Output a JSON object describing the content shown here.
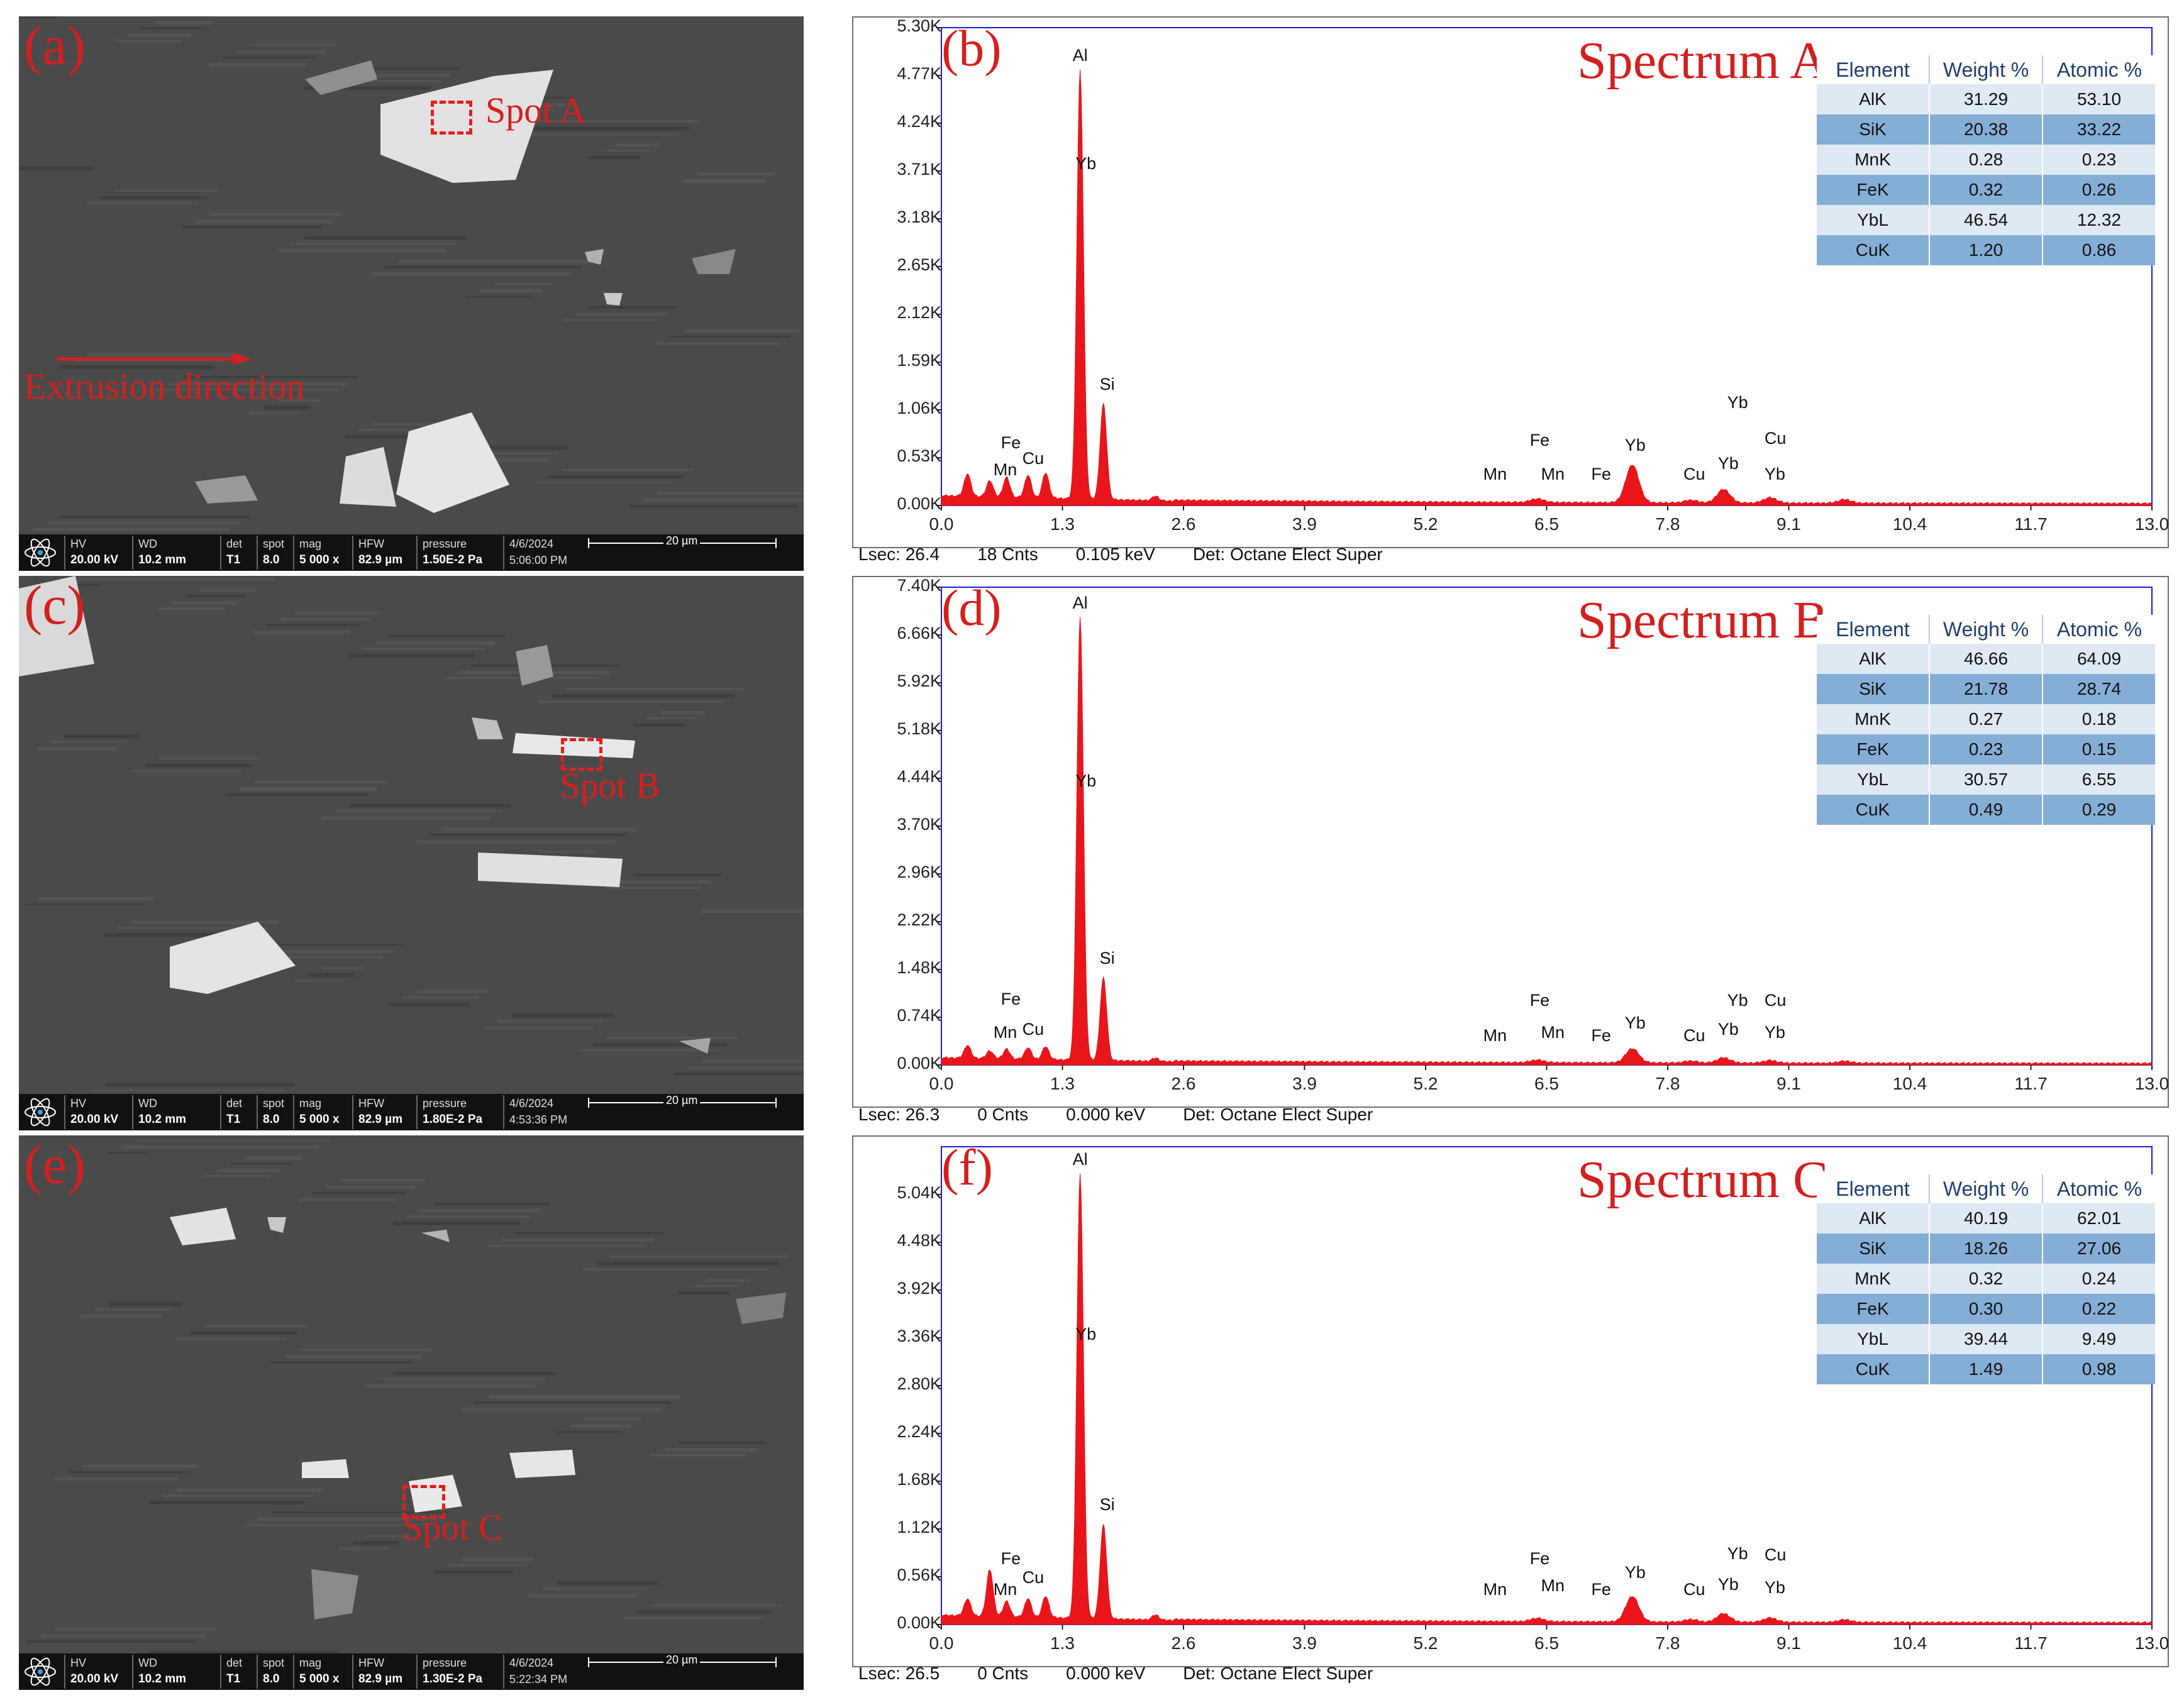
{
  "sem_panels": [
    {
      "letter": "(a)",
      "spot_label": "Spot A",
      "annotation": "Extrusion direction",
      "databar": {
        "hv": "20.00 kV",
        "wd": "10.2 mm",
        "det": "T1",
        "spot": "8.0",
        "mag": "5 000 x",
        "hfw": "82.9 µm",
        "pressure": "1.50E-2 Pa",
        "date": "4/6/2024",
        "time": "5:06:00 PM",
        "scale": "20 µm"
      }
    },
    {
      "letter": "(c)",
      "spot_label": "Spot B",
      "annotation": "",
      "databar": {
        "hv": "20.00 kV",
        "wd": "10.2 mm",
        "det": "T1",
        "spot": "8.0",
        "mag": "5 000 x",
        "hfw": "82.9 µm",
        "pressure": "1.80E-2 Pa",
        "date": "4/6/2024",
        "time": "4:53:36 PM",
        "scale": "20 µm"
      }
    },
    {
      "letter": "(e)",
      "spot_label": "Spot C",
      "annotation": "",
      "databar": {
        "hv": "20.00 kV",
        "wd": "10.2 mm",
        "det": "T1",
        "spot": "8.0",
        "mag": "5 000 x",
        "hfw": "82.9 µm",
        "pressure": "1.30E-2 Pa",
        "date": "4/6/2024",
        "time": "5:22:34 PM",
        "scale": "20 µm"
      }
    }
  ],
  "databar_keys": {
    "hv": "HV",
    "wd": "WD",
    "det": "det",
    "spot": "spot",
    "mag": "mag",
    "hfw": "HFW",
    "pressure": "pressure"
  },
  "table_headers": [
    "Element",
    "Weight %",
    "Atomic %"
  ],
  "peak_color": "#e8161b",
  "chart_data": [
    {
      "type": "line",
      "panel": "(b)",
      "title": "Spectrum A",
      "ylabels": [
        "5.30K",
        "4.77K",
        "4.24K",
        "3.71K",
        "3.18K",
        "2.65K",
        "2.12K",
        "1.59K",
        "1.06K",
        "0.53K",
        "0.00K"
      ],
      "xlabels": [
        "0.0",
        "1.3",
        "2.6",
        "3.9",
        "5.2",
        "6.5",
        "7.8",
        "9.1",
        "10.4",
        "11.7",
        "13.0"
      ],
      "xlim": [
        0,
        13.0
      ],
      "ylim": [
        0,
        5.3
      ],
      "x_unit": "keV",
      "y_unit": "K counts",
      "peaks": [
        [
          0.28,
          0.25
        ],
        [
          0.52,
          0.18
        ],
        [
          0.7,
          0.22
        ],
        [
          0.93,
          0.25
        ],
        [
          1.12,
          0.28
        ],
        [
          1.49,
          4.75
        ],
        [
          1.74,
          1.06
        ],
        [
          2.3,
          0.05
        ],
        [
          6.4,
          0.04
        ],
        [
          7.42,
          0.42
        ],
        [
          8.05,
          0.03
        ],
        [
          8.4,
          0.15
        ],
        [
          8.9,
          0.06
        ],
        [
          9.7,
          0.04
        ]
      ],
      "element_labels": [
        {
          "text": "Al",
          "x": 1.49,
          "y": 4.85
        },
        {
          "text": "Yb",
          "x": 1.52,
          "y": 3.65
        },
        {
          "text": "Si",
          "x": 1.78,
          "y": 1.2
        },
        {
          "text": "Fe",
          "x": 0.72,
          "y": 0.55
        },
        {
          "text": "Mn",
          "x": 0.64,
          "y": 0.25
        },
        {
          "text": "Cu",
          "x": 0.95,
          "y": 0.38
        },
        {
          "text": "Mn",
          "x": 5.9,
          "y": 0.2
        },
        {
          "text": "Fe",
          "x": 6.4,
          "y": 0.58
        },
        {
          "text": "Mn",
          "x": 6.52,
          "y": 0.2
        },
        {
          "text": "Fe",
          "x": 7.06,
          "y": 0.2
        },
        {
          "text": "Yb",
          "x": 7.42,
          "y": 0.52
        },
        {
          "text": "Cu",
          "x": 8.05,
          "y": 0.2
        },
        {
          "text": "Yb",
          "x": 8.42,
          "y": 0.32
        },
        {
          "text": "Yb",
          "x": 8.92,
          "y": 0.2
        },
        {
          "text": "Yb",
          "x": 8.52,
          "y": 1.0
        },
        {
          "text": "Cu",
          "x": 8.92,
          "y": 0.6
        }
      ],
      "table": [
        [
          "AlK",
          "31.29",
          "53.10"
        ],
        [
          "SiK",
          "20.38",
          "33.22"
        ],
        [
          "MnK",
          "0.28",
          "0.23"
        ],
        [
          "FeK",
          "0.32",
          "0.26"
        ],
        [
          "YbL",
          "46.54",
          "12.32"
        ],
        [
          "CuK",
          "1.20",
          "0.86"
        ]
      ],
      "footer": {
        "lsec": "Lsec: 26.4",
        "cnts": "18 Cnts",
        "kev": "0.105 keV",
        "det": "Det: Octane Elect Super"
      }
    },
    {
      "type": "line",
      "panel": "(d)",
      "title": "Spectrum B",
      "ylabels": [
        "7.40K",
        "6.66K",
        "5.92K",
        "5.18K",
        "4.44K",
        "3.70K",
        "2.96K",
        "2.22K",
        "1.48K",
        "0.74K",
        "0.00K"
      ],
      "xlabels": [
        "0.0",
        "1.3",
        "2.6",
        "3.9",
        "5.2",
        "6.5",
        "7.8",
        "9.1",
        "10.4",
        "11.7",
        "13.0"
      ],
      "xlim": [
        0,
        13.0
      ],
      "ylim": [
        0,
        7.4
      ],
      "x_unit": "keV",
      "y_unit": "K counts",
      "peaks": [
        [
          0.28,
          0.2
        ],
        [
          0.52,
          0.12
        ],
        [
          0.7,
          0.15
        ],
        [
          0.93,
          0.18
        ],
        [
          1.12,
          0.2
        ],
        [
          1.49,
          6.85
        ],
        [
          1.74,
          1.28
        ],
        [
          2.3,
          0.05
        ],
        [
          6.4,
          0.04
        ],
        [
          7.42,
          0.22
        ],
        [
          8.05,
          0.03
        ],
        [
          8.4,
          0.08
        ],
        [
          8.9,
          0.04
        ],
        [
          9.7,
          0.03
        ]
      ],
      "element_labels": [
        {
          "text": "Al",
          "x": 1.49,
          "y": 6.95
        },
        {
          "text": "Yb",
          "x": 1.52,
          "y": 4.2
        },
        {
          "text": "Si",
          "x": 1.78,
          "y": 1.45
        },
        {
          "text": "Fe",
          "x": 0.72,
          "y": 0.82
        },
        {
          "text": "Mn",
          "x": 0.64,
          "y": 0.3
        },
        {
          "text": "Cu",
          "x": 0.95,
          "y": 0.35
        },
        {
          "text": "Mn",
          "x": 5.9,
          "y": 0.25
        },
        {
          "text": "Fe",
          "x": 6.4,
          "y": 0.8
        },
        {
          "text": "Mn",
          "x": 6.52,
          "y": 0.3
        },
        {
          "text": "Fe",
          "x": 7.06,
          "y": 0.25
        },
        {
          "text": "Yb",
          "x": 7.42,
          "y": 0.45
        },
        {
          "text": "Cu",
          "x": 8.05,
          "y": 0.25
        },
        {
          "text": "Yb",
          "x": 8.42,
          "y": 0.35
        },
        {
          "text": "Yb",
          "x": 8.92,
          "y": 0.3
        },
        {
          "text": "Yb",
          "x": 8.52,
          "y": 0.8
        },
        {
          "text": "Cu",
          "x": 8.92,
          "y": 0.8
        }
      ],
      "table": [
        [
          "AlK",
          "46.66",
          "64.09"
        ],
        [
          "SiK",
          "21.78",
          "28.74"
        ],
        [
          "MnK",
          "0.27",
          "0.18"
        ],
        [
          "FeK",
          "0.23",
          "0.15"
        ],
        [
          "YbL",
          "30.57",
          "6.55"
        ],
        [
          "CuK",
          "0.49",
          "0.29"
        ]
      ],
      "footer": {
        "lsec": "Lsec: 26.3",
        "cnts": "0 Cnts",
        "kev": "0.000 keV",
        "det": "Det: Octane Elect Super"
      }
    },
    {
      "type": "line",
      "panel": "(f)",
      "title": "Spectrum C",
      "ylabels": [
        "5.04K",
        "4.48K",
        "3.92K",
        "3.36K",
        "2.80K",
        "2.24K",
        "1.68K",
        "1.12K",
        "0.56K",
        "0.00K"
      ],
      "xlabels": [
        "0.0",
        "1.3",
        "2.6",
        "3.9",
        "5.2",
        "6.5",
        "7.8",
        "9.1",
        "10.4",
        "11.7",
        "13.0"
      ],
      "xlim": [
        0,
        13.0
      ],
      "ylim": [
        0,
        5.6
      ],
      "x_unit": "keV",
      "y_unit": "K counts",
      "peaks": [
        [
          0.28,
          0.2
        ],
        [
          0.52,
          0.55
        ],
        [
          0.7,
          0.18
        ],
        [
          0.93,
          0.22
        ],
        [
          1.12,
          0.25
        ],
        [
          1.49,
          5.2
        ],
        [
          1.74,
          1.1
        ],
        [
          2.3,
          0.06
        ],
        [
          6.4,
          0.04
        ],
        [
          7.42,
          0.3
        ],
        [
          8.05,
          0.03
        ],
        [
          8.4,
          0.1
        ],
        [
          8.9,
          0.05
        ],
        [
          9.7,
          0.03
        ]
      ],
      "element_labels": [
        {
          "text": "Al",
          "x": 1.49,
          "y": 5.3
        },
        {
          "text": "Yb",
          "x": 1.52,
          "y": 3.25
        },
        {
          "text": "Si",
          "x": 1.78,
          "y": 1.25
        },
        {
          "text": "Fe",
          "x": 0.72,
          "y": 0.62
        },
        {
          "text": "Mn",
          "x": 0.64,
          "y": 0.26
        },
        {
          "text": "Cu",
          "x": 0.95,
          "y": 0.4
        },
        {
          "text": "Mn",
          "x": 5.9,
          "y": 0.26
        },
        {
          "text": "Fe",
          "x": 6.4,
          "y": 0.62
        },
        {
          "text": "Mn",
          "x": 6.52,
          "y": 0.3
        },
        {
          "text": "Fe",
          "x": 7.06,
          "y": 0.26
        },
        {
          "text": "Yb",
          "x": 7.42,
          "y": 0.46
        },
        {
          "text": "Cu",
          "x": 8.05,
          "y": 0.26
        },
        {
          "text": "Yb",
          "x": 8.42,
          "y": 0.32
        },
        {
          "text": "Yb",
          "x": 8.92,
          "y": 0.28
        },
        {
          "text": "Yb",
          "x": 8.52,
          "y": 0.68
        },
        {
          "text": "Cu",
          "x": 8.92,
          "y": 0.66
        }
      ],
      "table": [
        [
          "AlK",
          "40.19",
          "62.01"
        ],
        [
          "SiK",
          "18.26",
          "27.06"
        ],
        [
          "MnK",
          "0.32",
          "0.24"
        ],
        [
          "FeK",
          "0.30",
          "0.22"
        ],
        [
          "YbL",
          "39.44",
          "9.49"
        ],
        [
          "CuK",
          "1.49",
          "0.98"
        ]
      ],
      "footer": {
        "lsec": "Lsec: 26.5",
        "cnts": "0 Cnts",
        "kev": "0.000 keV",
        "det": "Det: Octane Elect Super"
      }
    }
  ]
}
